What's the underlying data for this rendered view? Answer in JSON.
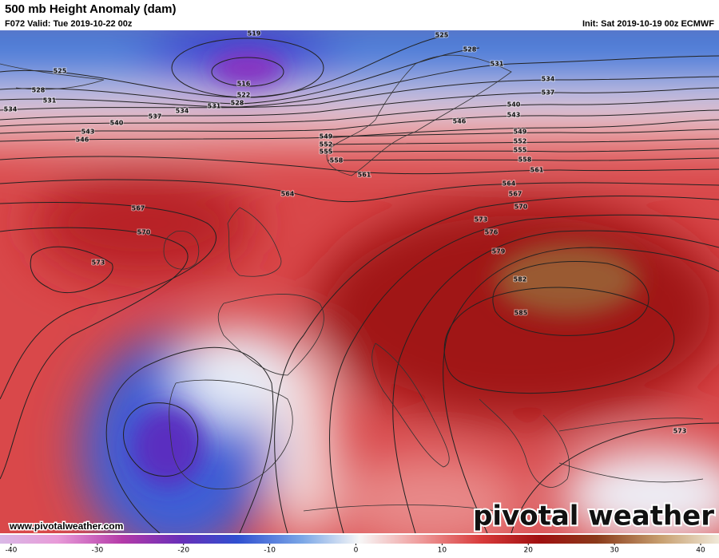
{
  "header": {
    "title": "500 mb Height Anomaly (dam)",
    "valid": "F072 Valid: Tue 2019-10-22 00z",
    "init": "Init: Sat 2019-10-19 00z ECMWF"
  },
  "map": {
    "contour_labels": [
      "519",
      "525",
      "528",
      "531",
      "534",
      "537",
      "540",
      "543",
      "546",
      "549",
      "552",
      "555",
      "558",
      "561",
      "564",
      "567",
      "570",
      "573",
      "576",
      "579",
      "582",
      "585",
      "573",
      "525",
      "528",
      "531",
      "534",
      "516",
      "522",
      "528",
      "531",
      "534",
      "537",
      "540",
      "543",
      "546",
      "549",
      "552",
      "555",
      "558",
      "561",
      "564",
      "567",
      "570",
      "573"
    ],
    "url": "www.pivotalweather.com",
    "watermark": "pivotal weather"
  },
  "colorbar": {
    "range": [
      -40,
      40
    ],
    "ticks": [
      -40,
      -30,
      -20,
      -10,
      0,
      10,
      20,
      30,
      40
    ]
  }
}
